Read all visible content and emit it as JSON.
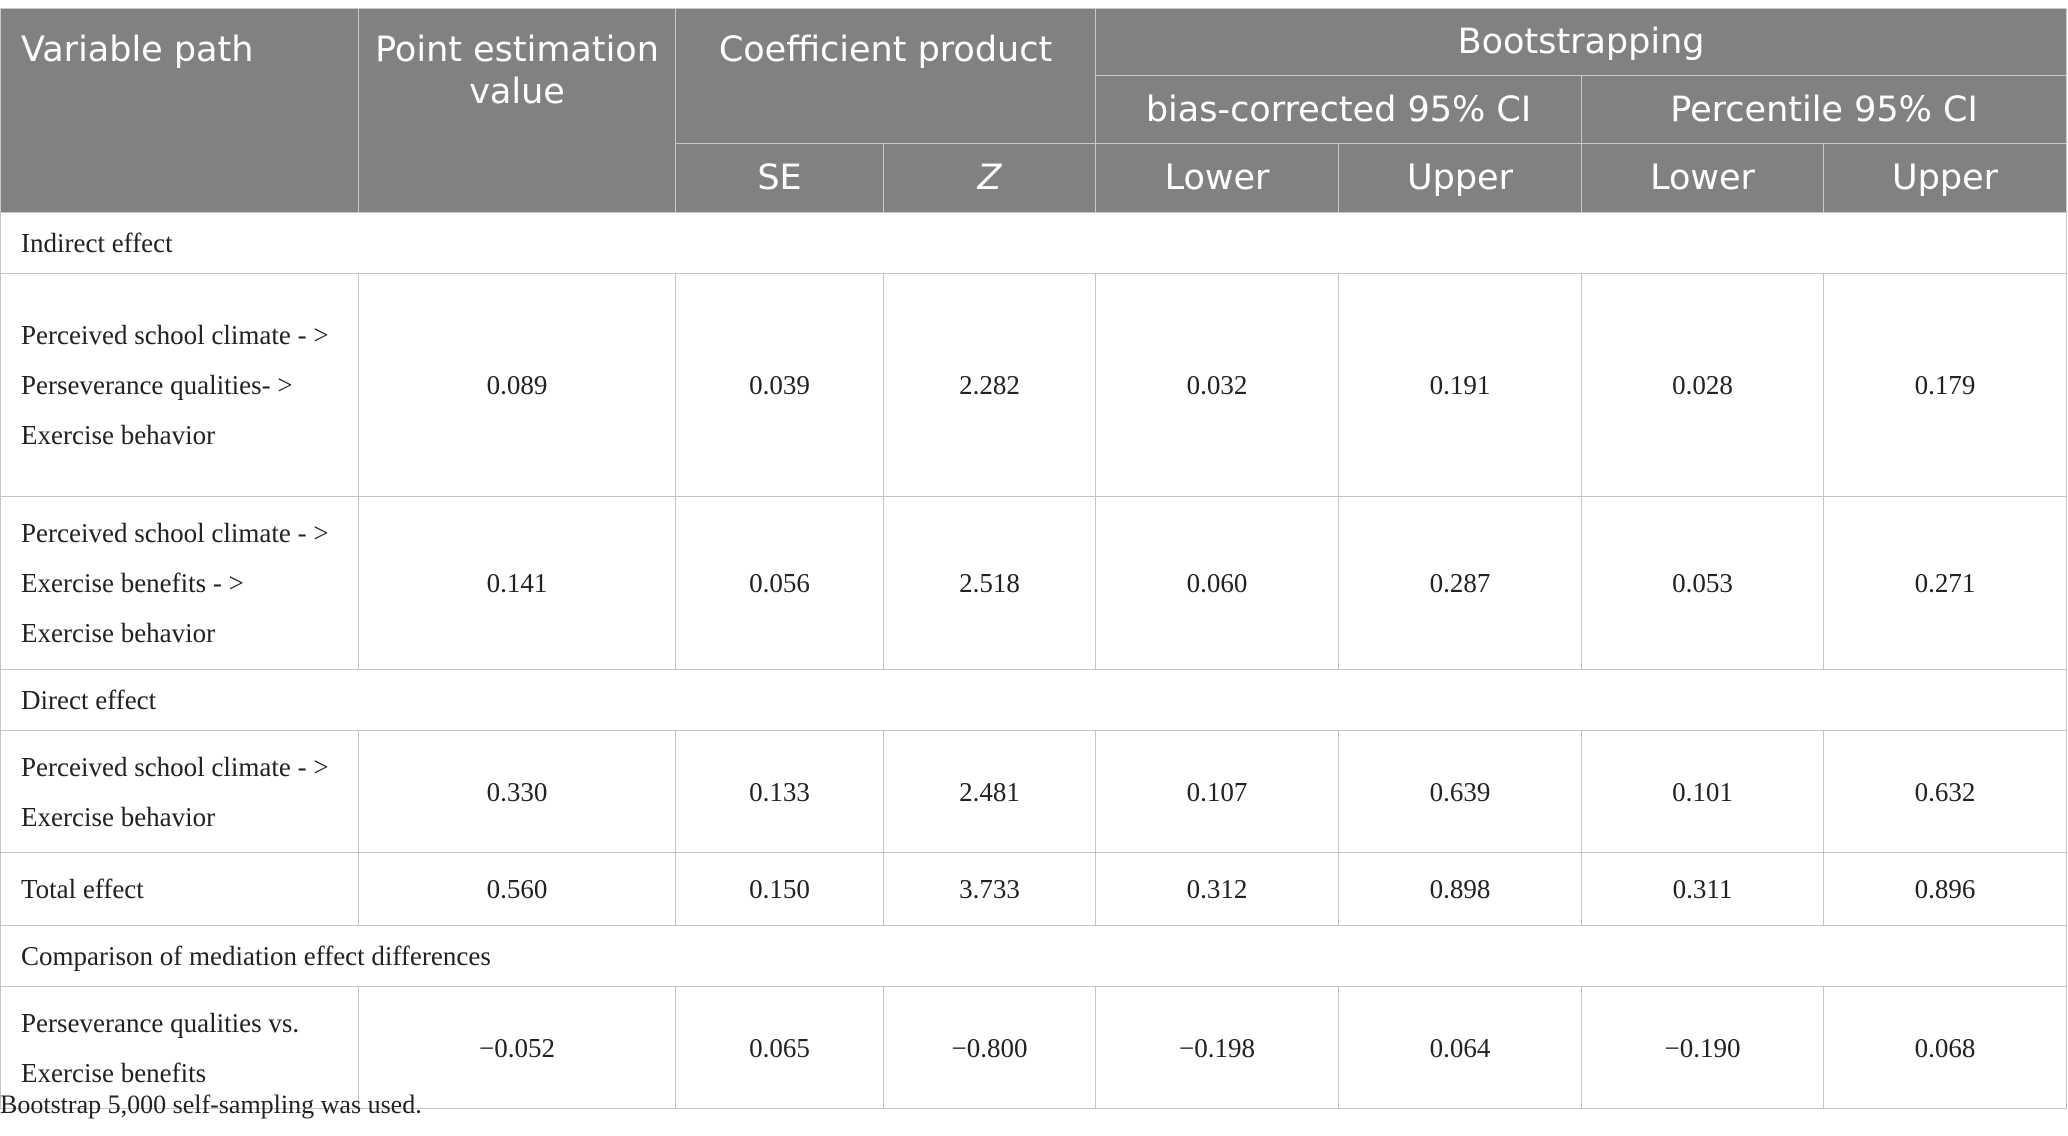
{
  "header": {
    "variable_path": "Variable path",
    "point_estimation": "Point estimation value",
    "coefficient_product": "Coefficient product",
    "bootstrapping": "Bootstrapping",
    "bias_corrected": "bias-corrected 95% CI",
    "percentile": "Percentile 95% CI",
    "se": "SE",
    "z": "Z",
    "lower": "Lower",
    "upper": "Upper"
  },
  "sections": {
    "indirect": "Indirect effect",
    "direct": "Direct effect",
    "comparison": "Comparison of mediation effect differences"
  },
  "rows": [
    {
      "label": "Perceived school climate - > Perseverance qualities- > Exercise behavior",
      "point": "0.089",
      "se": "0.039",
      "z": "2.282",
      "bc_lower": "0.032",
      "bc_upper": "0.191",
      "p_lower": "0.028",
      "p_upper": "0.179"
    },
    {
      "label": "Perceived school climate - > Exercise benefits - > Exercise behavior",
      "point": "0.141",
      "se": "0.056",
      "z": "2.518",
      "bc_lower": "0.060",
      "bc_upper": "0.287",
      "p_lower": "0.053",
      "p_upper": "0.271"
    },
    {
      "label": "Perceived school climate - > Exercise behavior",
      "point": "0.330",
      "se": "0.133",
      "z": "2.481",
      "bc_lower": "0.107",
      "bc_upper": "0.639",
      "p_lower": "0.101",
      "p_upper": "0.632"
    },
    {
      "label": "Total effect",
      "point": "0.560",
      "se": "0.150",
      "z": "3.733",
      "bc_lower": "0.312",
      "bc_upper": "0.898",
      "p_lower": "0.311",
      "p_upper": "0.896"
    },
    {
      "label": "Perseverance qualities vs. Exercise benefits",
      "point": "−0.052",
      "se": "0.065",
      "z": "−0.800",
      "bc_lower": "−0.198",
      "bc_upper": "0.064",
      "p_lower": "−0.190",
      "p_upper": "0.068"
    }
  ],
  "footnote": "Bootstrap 5,000 self-sampling was used."
}
